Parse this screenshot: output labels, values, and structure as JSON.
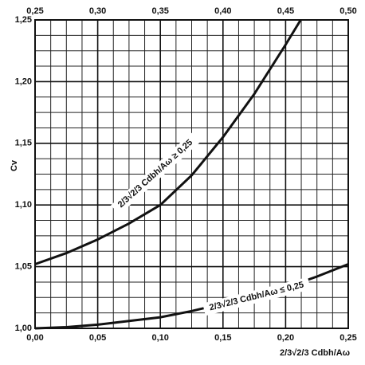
{
  "chart_data": {
    "type": "line",
    "x_label": "2/3√2/3 Cdbh/Aω",
    "y_label": "Cv",
    "xlim": [
      0,
      0.25
    ],
    "x2lim": [
      0.25,
      0.5
    ],
    "ylim": [
      1.0,
      1.25
    ],
    "xticks": [
      {
        "value": 0,
        "label": "0,00"
      },
      {
        "value": 0.05,
        "label": "0,05"
      },
      {
        "value": 0.1,
        "label": "0,10"
      },
      {
        "value": 0.15,
        "label": "0,15"
      },
      {
        "value": 0.2,
        "label": "0,20"
      },
      {
        "value": 0.25,
        "label": "0,25"
      }
    ],
    "x2ticks": [
      {
        "value": 0.25,
        "label": "0,25"
      },
      {
        "value": 0.3,
        "label": "0,30"
      },
      {
        "value": 0.35,
        "label": "0,35"
      },
      {
        "value": 0.4,
        "label": "0,40"
      },
      {
        "value": 0.45,
        "label": "0,45"
      },
      {
        "value": 0.5,
        "label": "0,50"
      }
    ],
    "yticks": [
      {
        "value": 1.0,
        "label": "1,00"
      },
      {
        "value": 1.05,
        "label": "1,05"
      },
      {
        "value": 1.1,
        "label": "1,10"
      },
      {
        "value": 1.15,
        "label": "1,15"
      },
      {
        "value": 1.2,
        "label": "1,20"
      },
      {
        "value": 1.25,
        "label": "1,25"
      }
    ],
    "minor_xticks": [
      0.0125,
      0.025,
      0.0375,
      0.0625,
      0.075,
      0.0875,
      0.1125,
      0.125,
      0.1375,
      0.1625,
      0.175,
      0.1875,
      0.2125,
      0.225,
      0.2375
    ],
    "minor_yticks": [
      1.0125,
      1.025,
      1.0375,
      1.0625,
      1.075,
      1.0875,
      1.1125,
      1.125,
      1.1375,
      1.1625,
      1.175,
      1.1875,
      1.2125,
      1.225,
      1.2375
    ],
    "grid": true,
    "series": [
      {
        "name": "2/3√2/3 Cdbh/Aω ≥ 0,25",
        "color": "#111111",
        "axis": "x2",
        "x": [
          0.25,
          0.275,
          0.3,
          0.325,
          0.35,
          0.375,
          0.4,
          0.425,
          0.45,
          0.462
        ],
        "values": [
          1.052,
          1.061,
          1.072,
          1.085,
          1.1,
          1.124,
          1.155,
          1.19,
          1.23,
          1.25
        ]
      },
      {
        "name": "2/3√2/3 Cdbh/Aω ≤ 0,25",
        "color": "#111111",
        "x": [
          0,
          0.025,
          0.05,
          0.075,
          0.1,
          0.125,
          0.15,
          0.175,
          0.2,
          0.225,
          0.25
        ],
        "values": [
          1.0,
          1.001,
          1.003,
          1.006,
          1.009,
          1.014,
          1.02,
          1.026,
          1.033,
          1.042,
          1.052
        ]
      }
    ]
  }
}
